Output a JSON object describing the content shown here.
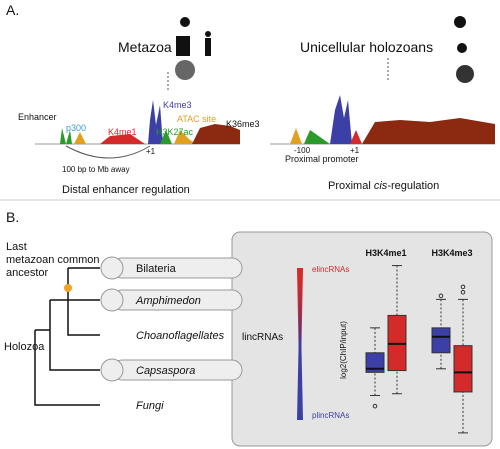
{
  "panel_a": {
    "label": "A.",
    "left": {
      "title": "Metazoa",
      "enhancer": "Enhancer",
      "p300": "p300",
      "k4me1": "K4me1",
      "k4me3": "K4me3",
      "k27ac": "H3K27ac",
      "atac": "ATAC site",
      "k36me3": "K36me3",
      "tss": "+1",
      "distance": "100 bp to Mb away",
      "caption": "Distal enhancer regulation"
    },
    "right": {
      "title": "Unicellular holozoans",
      "minus": "-100",
      "tss": "+1",
      "promoter": "Proximal promoter",
      "caption_1": "Proximal",
      "caption_2": "cis",
      "caption_3": "-regulation"
    }
  },
  "panel_b": {
    "label": "B.",
    "lmca": [
      "Last",
      "metazoan common",
      "ancestor"
    ],
    "holozoa": "Holozoa",
    "taxa": [
      "Bilateria",
      "Amphimedon",
      "Choanoflagellates",
      "Capsaspora",
      "Fungi"
    ],
    "lincrnas": "lincRNAs",
    "elincrnas": "elincRNAs",
    "plincrnas": "plincRNAs"
  },
  "chart_data": {
    "type": "box",
    "y_label": "log2(ChIP/input)",
    "categories": [
      "H3K4me1",
      "H3K4me3"
    ],
    "ylim": [
      0,
      10
    ],
    "series": [
      {
        "color": "#3b3fa6",
        "values": [
          {
            "whislo": 2.5,
            "q1": 3.8,
            "med": 4.0,
            "q3": 4.9,
            "whishi": 6.3,
            "fliers": [
              1.9
            ]
          },
          {
            "whislo": 4.0,
            "q1": 4.9,
            "med": 5.8,
            "q3": 6.3,
            "whishi": 7.9,
            "fliers": [
              8.1
            ]
          }
        ]
      },
      {
        "color": "#d42a2a",
        "values": [
          {
            "whislo": 2.6,
            "q1": 3.9,
            "med": 5.4,
            "q3": 7.0,
            "whishi": 9.8,
            "fliers": []
          },
          {
            "whislo": 0.4,
            "q1": 2.7,
            "med": 3.8,
            "q3": 5.3,
            "whishi": 7.9,
            "fliers": [
              8.3,
              8.6
            ]
          }
        ]
      }
    ]
  }
}
